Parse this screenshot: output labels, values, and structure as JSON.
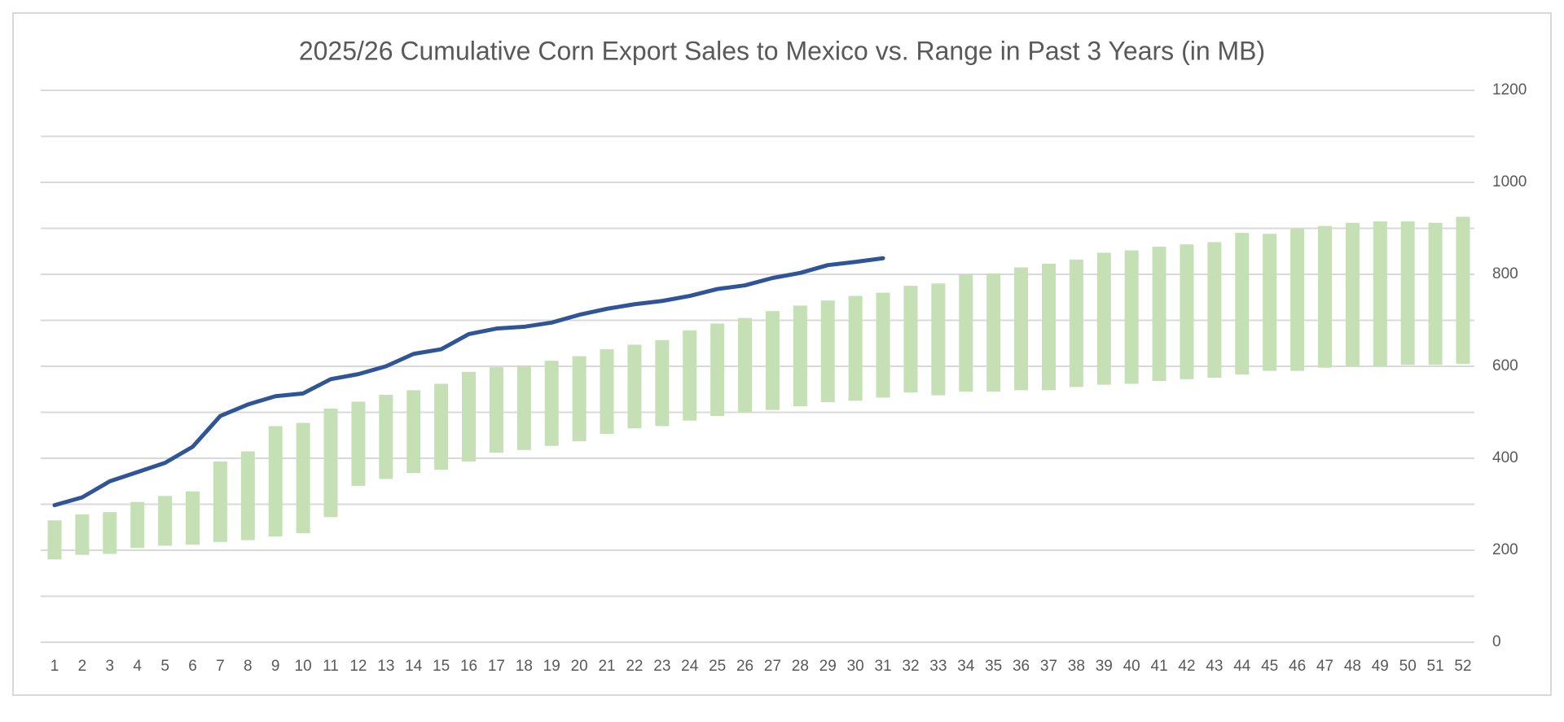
{
  "chart_data": {
    "type": "combo",
    "title": "2025/26 Cumulative Corn Export Sales to Mexico vs. Range in Past 3 Years (in MB)",
    "categories": [
      "1",
      "2",
      "3",
      "4",
      "5",
      "6",
      "7",
      "8",
      "9",
      "10",
      "11",
      "12",
      "13",
      "14",
      "15",
      "16",
      "17",
      "18",
      "19",
      "20",
      "21",
      "22",
      "23",
      "24",
      "25",
      "26",
      "27",
      "28",
      "29",
      "30",
      "31",
      "32",
      "33",
      "34",
      "35",
      "36",
      "37",
      "38",
      "39",
      "40",
      "41",
      "42",
      "43",
      "44",
      "45",
      "46",
      "47",
      "48",
      "49",
      "50",
      "51",
      "52"
    ],
    "range": {
      "color": "#c5e0b4",
      "low": [
        180,
        190,
        192,
        205,
        210,
        212,
        218,
        222,
        230,
        237,
        272,
        340,
        355,
        368,
        375,
        393,
        412,
        418,
        427,
        437,
        453,
        465,
        470,
        482,
        492,
        500,
        505,
        513,
        522,
        525,
        532,
        543,
        537,
        545,
        545,
        548,
        548,
        555,
        560,
        562,
        568,
        572,
        575,
        582,
        590,
        590,
        597,
        600,
        600,
        603,
        603,
        605
      ],
      "high": [
        265,
        278,
        283,
        305,
        318,
        328,
        393,
        415,
        470,
        477,
        508,
        523,
        538,
        548,
        562,
        588,
        598,
        602,
        612,
        622,
        637,
        647,
        657,
        678,
        693,
        705,
        720,
        732,
        743,
        753,
        760,
        775,
        780,
        800,
        802,
        815,
        823,
        832,
        847,
        852,
        860,
        865,
        870,
        890,
        888,
        900,
        905,
        912,
        915,
        915,
        912,
        925
      ]
    },
    "line": {
      "color": "#2f5597",
      "values": [
        298,
        315,
        350,
        370,
        390,
        425,
        492,
        517,
        535,
        541,
        572,
        583,
        600,
        627,
        637,
        670,
        682,
        686,
        695,
        712,
        725,
        735,
        742,
        753,
        768,
        776,
        792,
        803,
        820,
        827,
        835,
        null,
        null,
        null,
        null,
        null,
        null,
        null,
        null,
        null,
        null,
        null,
        null,
        null,
        null,
        null,
        null,
        null,
        null,
        null,
        null,
        null
      ]
    },
    "ylim": [
      0,
      1200
    ],
    "yticks": [
      0,
      200,
      400,
      600,
      800,
      1000,
      1200
    ],
    "minor_grid": [
      100,
      300,
      500,
      700,
      900,
      1100
    ],
    "grid": true,
    "y_axis_side": "right"
  }
}
